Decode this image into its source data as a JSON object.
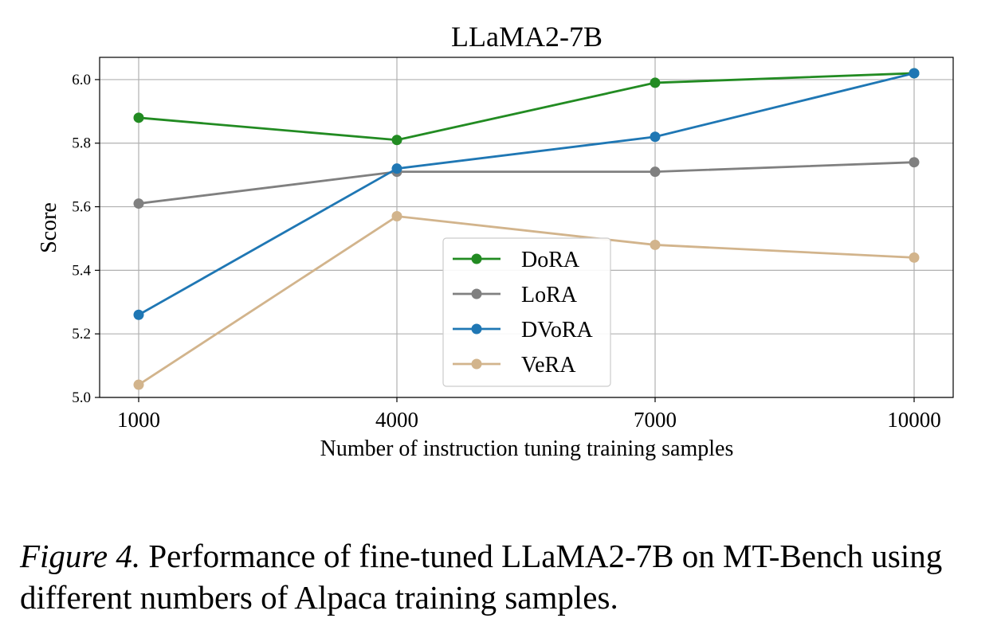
{
  "chart_data": {
    "type": "line",
    "title": "LLaMA2-7B",
    "xlabel": "Number of instruction tuning training samples",
    "ylabel": "Score",
    "categories": [
      "1000",
      "4000",
      "7000",
      "10000"
    ],
    "y_ticks": [
      "5.0",
      "5.2",
      "5.4",
      "5.6",
      "5.8",
      "6.0"
    ],
    "ylim": [
      5.0,
      6.07
    ],
    "grid": true,
    "legend_position": "center",
    "series": [
      {
        "name": "DoRA",
        "color": "#228b22",
        "values": [
          5.88,
          5.81,
          5.99,
          6.02
        ]
      },
      {
        "name": "LoRA",
        "color": "#808080",
        "values": [
          5.61,
          5.71,
          5.71,
          5.74
        ]
      },
      {
        "name": "DVoRA",
        "color": "#1f77b4",
        "values": [
          5.26,
          5.72,
          5.82,
          6.02
        ]
      },
      {
        "name": "VeRA",
        "color": "#d2b48c",
        "values": [
          5.04,
          5.57,
          5.48,
          5.44
        ]
      }
    ]
  },
  "caption": {
    "label": "Figure 4.",
    "text": " Performance of fine-tuned LLaMA2-7B on MT-Bench using different numbers of Alpaca training samples."
  }
}
